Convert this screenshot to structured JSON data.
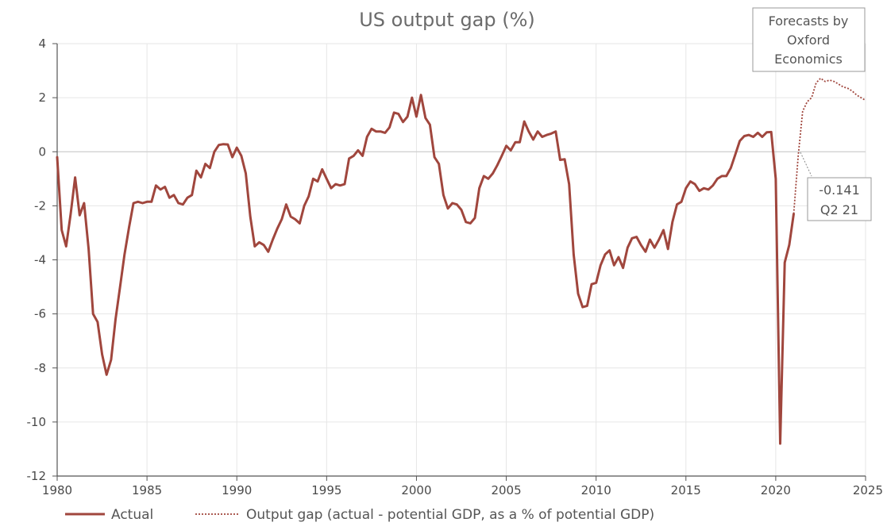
{
  "chart_data": {
    "type": "line",
    "title": "US output gap (%)",
    "xlabel": "",
    "ylabel": "",
    "xlim": [
      1980,
      2025
    ],
    "ylim": [
      -12,
      4
    ],
    "xticks": [
      "1980",
      "1985",
      "1990",
      "1995",
      "2000",
      "2005",
      "2010",
      "2015",
      "2020",
      "2025"
    ],
    "yticks": [
      "4",
      "2",
      "0",
      "-2",
      "-4",
      "-6",
      "-8",
      "-10",
      "-12"
    ],
    "grid": true,
    "legend_position": "bottom",
    "colors": {
      "line": "#a0463d",
      "axis": "#555555",
      "grid": "#e6e6e6",
      "zero": "#c8c8c8",
      "box_border": "#999999"
    },
    "series": [
      {
        "name": "Actual",
        "style": "solid",
        "x": [
          1980.0,
          1980.25,
          1980.5,
          1980.75,
          1981.0,
          1981.25,
          1981.5,
          1981.75,
          1982.0,
          1982.25,
          1982.5,
          1982.75,
          1983.0,
          1983.25,
          1983.5,
          1983.75,
          1984.0,
          1984.25,
          1984.5,
          1984.75,
          1985.0,
          1985.25,
          1985.5,
          1985.75,
          1986.0,
          1986.25,
          1986.5,
          1986.75,
          1987.0,
          1987.25,
          1987.5,
          1987.75,
          1988.0,
          1988.25,
          1988.5,
          1988.75,
          1989.0,
          1989.25,
          1989.5,
          1989.75,
          1990.0,
          1990.25,
          1990.5,
          1990.75,
          1991.0,
          1991.25,
          1991.5,
          1991.75,
          1992.0,
          1992.25,
          1992.5,
          1992.75,
          1993.0,
          1993.25,
          1993.5,
          1993.75,
          1994.0,
          1994.25,
          1994.5,
          1994.75,
          1995.0,
          1995.25,
          1995.5,
          1995.75,
          1996.0,
          1996.25,
          1996.5,
          1996.75,
          1997.0,
          1997.25,
          1997.5,
          1997.75,
          1998.0,
          1998.25,
          1998.5,
          1998.75,
          1999.0,
          1999.25,
          1999.5,
          1999.75,
          2000.0,
          2000.25,
          2000.5,
          2000.75,
          2001.0,
          2001.25,
          2001.5,
          2001.75,
          2002.0,
          2002.25,
          2002.5,
          2002.75,
          2003.0,
          2003.25,
          2003.5,
          2003.75,
          2004.0,
          2004.25,
          2004.5,
          2004.75,
          2005.0,
          2005.25,
          2005.5,
          2005.75,
          2006.0,
          2006.25,
          2006.5,
          2006.75,
          2007.0,
          2007.25,
          2007.5,
          2007.75,
          2008.0,
          2008.25,
          2008.5,
          2008.75,
          2009.0,
          2009.25,
          2009.5,
          2009.75,
          2010.0,
          2010.25,
          2010.5,
          2010.75,
          2011.0,
          2011.25,
          2011.5,
          2011.75,
          2012.0,
          2012.25,
          2012.5,
          2012.75,
          2013.0,
          2013.25,
          2013.5,
          2013.75,
          2014.0,
          2014.25,
          2014.5,
          2014.75,
          2015.0,
          2015.25,
          2015.5,
          2015.75,
          2016.0,
          2016.25,
          2016.5,
          2016.75,
          2017.0,
          2017.25,
          2017.5,
          2017.75,
          2018.0,
          2018.25,
          2018.5,
          2018.75,
          2019.0,
          2019.25,
          2019.5,
          2019.75,
          2020.0,
          2020.25,
          2020.5,
          2020.75,
          2021.0
        ],
        "y": [
          -0.2,
          -2.9,
          -3.5,
          -2.3,
          -0.95,
          -2.35,
          -1.9,
          -3.6,
          -6.0,
          -6.3,
          -7.5,
          -8.25,
          -7.7,
          -6.2,
          -5.0,
          -3.8,
          -2.8,
          -1.9,
          -1.85,
          -1.9,
          -1.85,
          -1.85,
          -1.25,
          -1.4,
          -1.3,
          -1.7,
          -1.6,
          -1.9,
          -1.95,
          -1.7,
          -1.6,
          -0.7,
          -0.95,
          -0.45,
          -0.6,
          0.0,
          0.25,
          0.28,
          0.27,
          -0.2,
          0.15,
          -0.15,
          -0.8,
          -2.4,
          -3.5,
          -3.35,
          -3.45,
          -3.7,
          -3.25,
          -2.85,
          -2.5,
          -1.95,
          -2.4,
          -2.5,
          -2.65,
          -2.0,
          -1.65,
          -1.0,
          -1.1,
          -0.65,
          -1.0,
          -1.35,
          -1.2,
          -1.25,
          -1.2,
          -0.25,
          -0.15,
          0.05,
          -0.15,
          0.55,
          0.85,
          0.75,
          0.75,
          0.7,
          0.9,
          1.45,
          1.4,
          1.1,
          1.3,
          2.0,
          1.3,
          2.1,
          1.25,
          1.0,
          -0.2,
          -0.45,
          -1.6,
          -2.1,
          -1.9,
          -1.95,
          -2.15,
          -2.6,
          -2.65,
          -2.45,
          -1.35,
          -0.9,
          -1.0,
          -0.8,
          -0.5,
          -0.15,
          0.22,
          0.05,
          0.35,
          0.35,
          1.12,
          0.75,
          0.45,
          0.75,
          0.55,
          0.62,
          0.67,
          0.75,
          -0.3,
          -0.28,
          -1.2,
          -3.8,
          -5.25,
          -5.75,
          -5.7,
          -4.9,
          -4.85,
          -4.2,
          -3.8,
          -3.65,
          -4.2,
          -3.9,
          -4.3,
          -3.55,
          -3.2,
          -3.15,
          -3.45,
          -3.7,
          -3.25,
          -3.55,
          -3.25,
          -2.9,
          -3.6,
          -2.6,
          -1.95,
          -1.85,
          -1.35,
          -1.1,
          -1.2,
          -1.45,
          -1.35,
          -1.4,
          -1.25,
          -1.0,
          -0.9,
          -0.9,
          -0.6,
          -0.1,
          0.4,
          0.58,
          0.62,
          0.55,
          0.7,
          0.55,
          0.72,
          0.73,
          -1.0,
          -10.8,
          -4.1,
          -3.45,
          -2.3
        ]
      },
      {
        "name": "Output gap (actual - potential GDP, as a % of potential GDP)",
        "style": "dotted",
        "x": [
          2021.0,
          2021.25,
          2021.5,
          2021.75,
          2022.0,
          2022.25,
          2022.5,
          2022.75,
          2023.0,
          2023.25,
          2023.5,
          2023.75,
          2024.0,
          2024.25,
          2024.5,
          2024.75,
          2025.0
        ],
        "y": [
          -2.3,
          -0.141,
          1.5,
          1.85,
          2.0,
          2.55,
          2.72,
          2.6,
          2.65,
          2.6,
          2.5,
          2.4,
          2.35,
          2.25,
          2.1,
          2.0,
          1.9
        ]
      }
    ],
    "annotations": {
      "forecast_box": [
        "Forecasts by",
        "Oxford",
        "Economics"
      ],
      "point_label": [
        "-0.141",
        "Q2 21"
      ]
    }
  }
}
